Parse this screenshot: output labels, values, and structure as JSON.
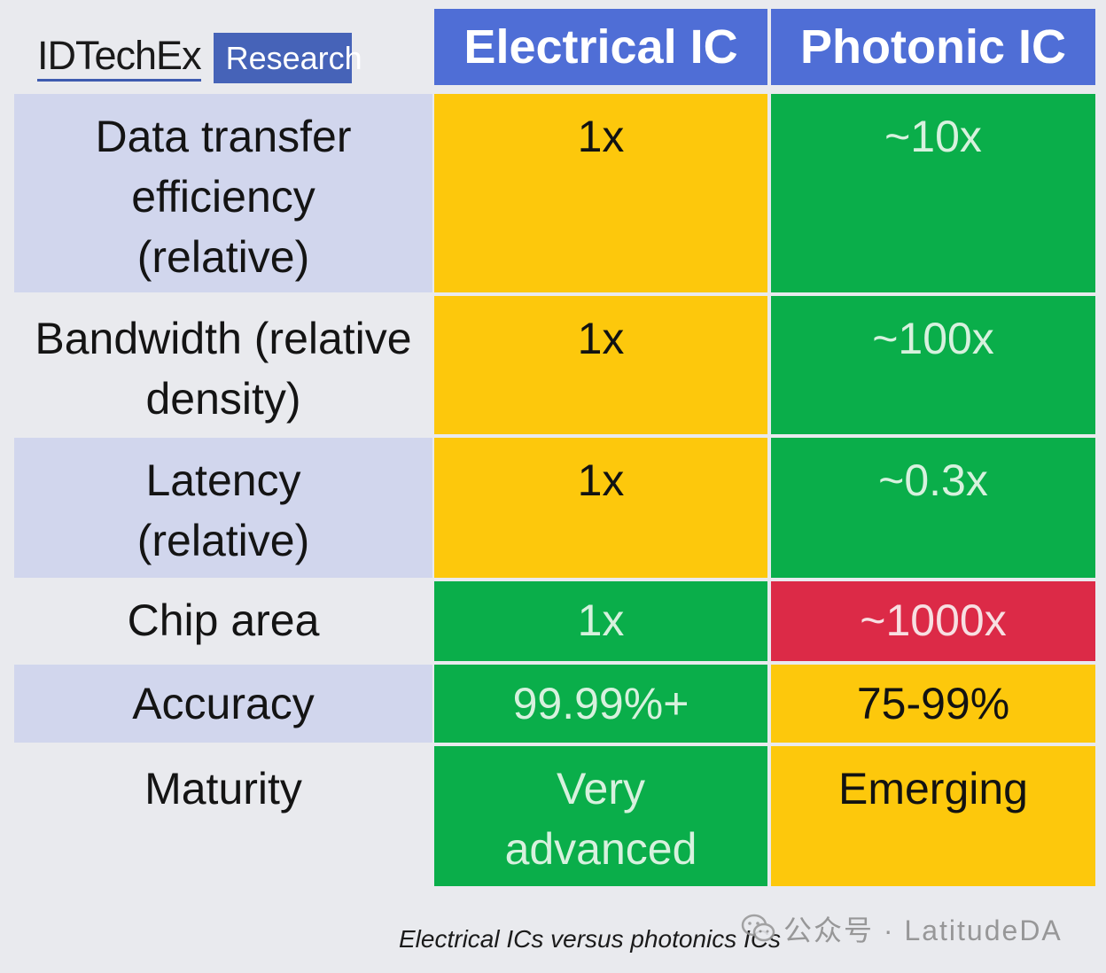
{
  "logo": {
    "brand": "IDTechEx",
    "tag": "Research"
  },
  "columns": [
    "Electrical IC",
    "Photonic IC"
  ],
  "rows": [
    {
      "label": "Data transfer efficiency (relative)",
      "electrical": "1x",
      "photonic": "~10x",
      "electrical_color": "yellow",
      "photonic_color": "green"
    },
    {
      "label": "Bandwidth (relative density)",
      "electrical": "1x",
      "photonic": "~100x",
      "electrical_color": "yellow",
      "photonic_color": "green"
    },
    {
      "label": "Latency (relative)",
      "electrical": "1x",
      "photonic": "~0.3x",
      "electrical_color": "yellow",
      "photonic_color": "green"
    },
    {
      "label": "Chip area",
      "electrical": "1x",
      "photonic": "~1000x",
      "electrical_color": "green",
      "photonic_color": "red"
    },
    {
      "label": "Accuracy",
      "electrical": "99.99%+",
      "photonic": "75-99%",
      "electrical_color": "green",
      "photonic_color": "yellow"
    },
    {
      "label": "Maturity",
      "electrical": "Very advanced",
      "photonic": "Emerging",
      "electrical_color": "green",
      "photonic_color": "yellow"
    }
  ],
  "colors": {
    "header": "#4f6ed6",
    "yellow": "#fdc80c",
    "green": "#0aae4a",
    "red": "#dc2a47",
    "label_alt": "#d1d6ed"
  },
  "caption": "Electrical ICs versus photonics ICs",
  "watermark": {
    "icon": "wechat-icon",
    "text": "公众号 · LatitudeDA"
  }
}
